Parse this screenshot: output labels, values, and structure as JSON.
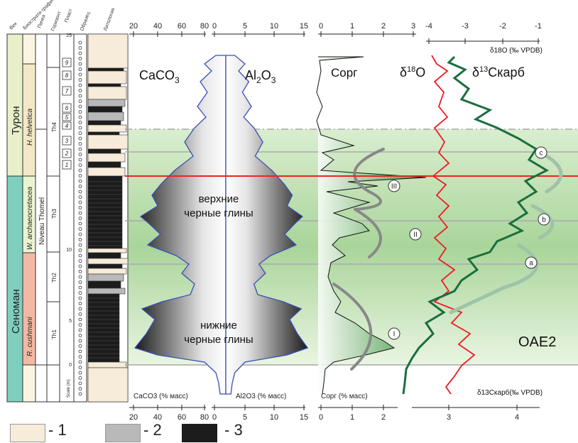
{
  "columns": {
    "vek": "Век",
    "biostrat": "Биострати-графическая зона",
    "pachka": "Пачка",
    "gorizont": "Горизонт",
    "plast": "Пласт",
    "obrazec": "Образец",
    "litologiya": "Литология"
  },
  "stages": {
    "turon": "Турон",
    "cenoman": "Сеноман"
  },
  "zones": {
    "helvetica": "H. helvetica",
    "archaeo": "W. archaeocretacea",
    "cushmani": "R. cushmani"
  },
  "niveau": "Niveau Thomel",
  "horizons": [
    "Th4",
    "Th3",
    "Th2",
    "Th1"
  ],
  "beds": [
    "9",
    "8",
    "7",
    "6",
    "5",
    "4",
    "3",
    "2",
    "1"
  ],
  "scale": {
    "label": "Scale (m)",
    "ticks": [
      "25",
      "10",
      "5",
      "0"
    ]
  },
  "caco3": {
    "title": "CaCO",
    "sub": "3",
    "unit_label": "CaCO3 (% масс)",
    "ticks": [
      "20",
      "40",
      "60",
      "80"
    ]
  },
  "al2o3": {
    "title_a": "Al",
    "sub_a": "2",
    "title_b": "O",
    "sub_b": "3",
    "unit_label": "Al2O3 (% масс)",
    "ticks": [
      "0",
      "5",
      "10",
      "15"
    ]
  },
  "corg": {
    "title": "Сорг",
    "unit_label": "Сорг (% масс)",
    "ticks_top": [
      "0",
      "1",
      "2",
      "3"
    ],
    "ticks_bottom": [
      "0",
      "1",
      "2"
    ]
  },
  "d18o": {
    "title_pre": "δ",
    "sup": "18",
    "title_post": "O",
    "axis_label": "δ18O (‰ VPDB)",
    "ticks": [
      "-4",
      "-3",
      "-2",
      "-1"
    ]
  },
  "d13c": {
    "title_pre": "δ",
    "sup": "13",
    "title_post": "Скарб",
    "axis_label": "δ13Скарб(‰ VPDB)",
    "ticks": [
      "3",
      "4"
    ]
  },
  "text": {
    "upper_1": "верхние",
    "upper_2": "черные глины",
    "lower_1": "нижние",
    "lower_2": "черные глины",
    "oae2": "OAE2"
  },
  "peaks_corg": [
    "III",
    "II",
    "I"
  ],
  "peaks_d13c": [
    "c",
    "b",
    "a"
  ],
  "legend": [
    {
      "label": "- 1",
      "color": "#f7ecd9"
    },
    {
      "label": "- 2",
      "color": "#b9b9b9"
    },
    {
      "label": "- 3",
      "color": "#1c1c1c"
    }
  ],
  "colors": {
    "stage_turon": "#e7f0c8",
    "stage_cenoman": "#7fcfbf",
    "zone_helvetica": "#f2e8c8",
    "zone_archaeo": "#eaf4d0",
    "zone_cushmani": "#f3b8a4",
    "oae_band": "#b8dca8",
    "red_line": "#e8261f",
    "d18o": "#ee1c25",
    "d13c": "#1b6e3e",
    "mineral_line": "#3b4fb8"
  }
}
